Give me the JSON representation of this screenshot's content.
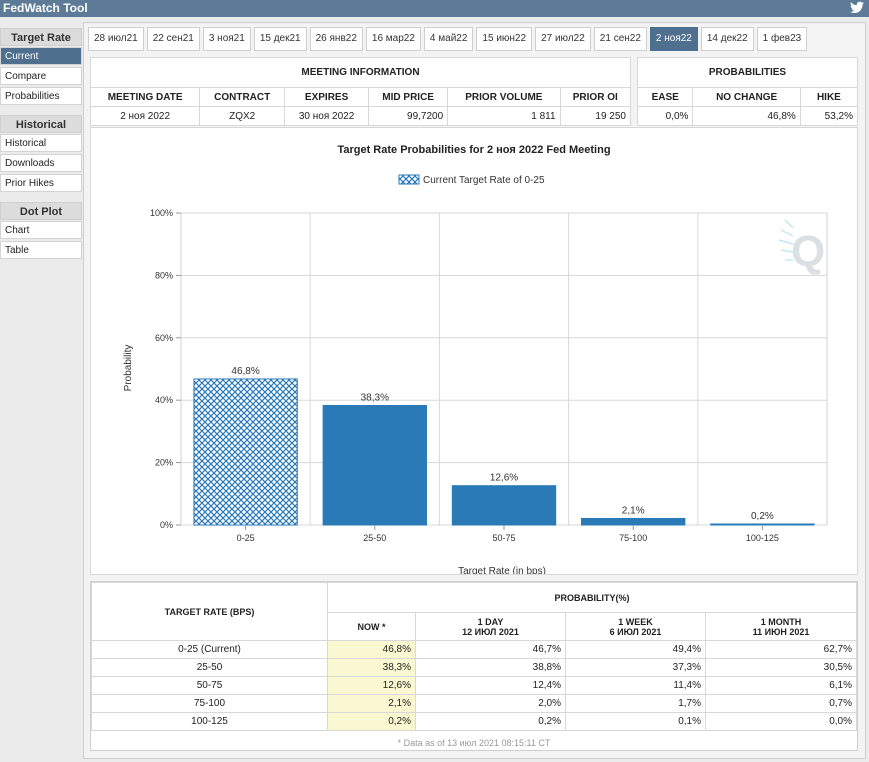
{
  "app": {
    "title": "FedWatch Tool",
    "twitter_icon": "twitter-icon"
  },
  "sidebar": {
    "sections": [
      {
        "title": "Target Rate",
        "items": [
          "Current",
          "Compare",
          "Probabilities"
        ]
      },
      {
        "title": "Historical",
        "items": [
          "Historical",
          "Downloads",
          "Prior Hikes"
        ]
      },
      {
        "title": "Dot Plot",
        "items": [
          "Chart",
          "Table"
        ]
      }
    ],
    "active_item": "Current"
  },
  "tabs": [
    "28 июл21",
    "22 сен21",
    "3 ноя21",
    "15 дек21",
    "26 янв22",
    "16 мар22",
    "4 май22",
    "15 июн22",
    "27 июл22",
    "21 сен22",
    "2 ноя22",
    "14 дек22",
    "1 фев23"
  ],
  "active_tab": "2 ноя22",
  "meeting_info": {
    "title": "MEETING INFORMATION",
    "headers": [
      "MEETING DATE",
      "CONTRACT",
      "EXPIRES",
      "MID PRICE",
      "PRIOR VOLUME",
      "PRIOR OI"
    ],
    "values": [
      "2 ноя 2022",
      "ZQX2",
      "30 ноя 2022",
      "99,7200",
      "1 811",
      "19 250"
    ]
  },
  "probabilities": {
    "title": "PROBABILITIES",
    "headers": [
      "EASE",
      "NO CHANGE",
      "HIKE"
    ],
    "values": [
      "0,0%",
      "46,8%",
      "53,2%"
    ]
  },
  "chart_data": {
    "type": "bar",
    "title": "Target Rate Probabilities for 2 ноя 2022 Fed Meeting",
    "legend": "Current Target Rate of 0-25",
    "xlabel": "Target Rate (in bps)",
    "ylabel": "Probability",
    "categories": [
      "0-25",
      "25-50",
      "50-75",
      "75-100",
      "100-125"
    ],
    "values": [
      46.8,
      38.3,
      12.6,
      2.1,
      0.2
    ],
    "value_labels": [
      "46,8%",
      "38,3%",
      "12,6%",
      "2,1%",
      "0,2%"
    ],
    "ylim": [
      0,
      100
    ],
    "yticks": [
      "0%",
      "20%",
      "40%",
      "60%",
      "80%",
      "100%"
    ],
    "current_category_index": 0,
    "bar_color": "#2a7ab8",
    "grid": true,
    "legend_position": "top-center"
  },
  "history_table": {
    "target_rate_header": "TARGET RATE (BPS)",
    "probability_header": "PROBABILITY(%)",
    "columns": [
      {
        "line1": "NOW *",
        "line2": ""
      },
      {
        "line1": "1 DAY",
        "line2": "12 ИЮЛ 2021"
      },
      {
        "line1": "1 WEEK",
        "line2": "6 ИЮЛ 2021"
      },
      {
        "line1": "1 MONTH",
        "line2": "11 ИЮН 2021"
      }
    ],
    "rows": [
      {
        "rate": "0-25 (Current)",
        "values": [
          "46,8%",
          "46,7%",
          "49,4%",
          "62,7%"
        ]
      },
      {
        "rate": "25-50",
        "values": [
          "38,3%",
          "38,8%",
          "37,3%",
          "30,5%"
        ]
      },
      {
        "rate": "50-75",
        "values": [
          "12,6%",
          "12,4%",
          "11,4%",
          "6,1%"
        ]
      },
      {
        "rate": "75-100",
        "values": [
          "2,1%",
          "2,0%",
          "1,7%",
          "0,7%"
        ]
      },
      {
        "rate": "100-125",
        "values": [
          "0,2%",
          "0,2%",
          "0,1%",
          "0,0%"
        ]
      }
    ],
    "footnote": "* Data as of 13 июл 2021 08:15:11 CT"
  }
}
